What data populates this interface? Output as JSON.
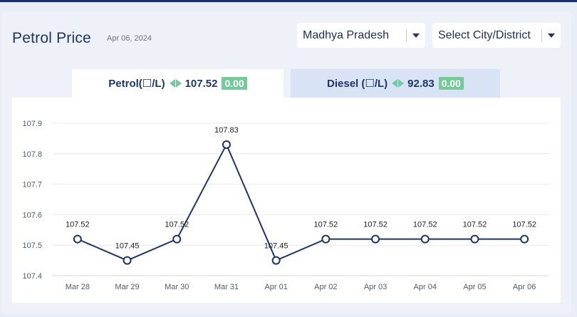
{
  "header": {
    "title": "Petrol Price",
    "date": "Apr 06, 2024"
  },
  "filters": {
    "state": "Madhya Pradesh",
    "city": "Select City/District"
  },
  "tabs": {
    "petrol": {
      "label": "Petrol(☐/L)",
      "price": "107.52",
      "change": "0.00"
    },
    "diesel": {
      "label": "Diesel (☐/L)",
      "price": "92.83",
      "change": "0.00"
    }
  },
  "colors": {
    "line": "#1f3566",
    "grid": "#e6e9ef",
    "change_badge": "#79c89b",
    "active_tab": "#ffffff",
    "inactive_tab": "#d9e3f6"
  },
  "chart_data": {
    "type": "line",
    "categories": [
      "Mar 28",
      "Mar 29",
      "Mar 30",
      "Mar 31",
      "Apr 01",
      "Apr 02",
      "Apr 03",
      "Apr 04",
      "Apr 05",
      "Apr 06"
    ],
    "series": [
      {
        "values": [
          107.52,
          107.45,
          107.52,
          107.83,
          107.45,
          107.52,
          107.52,
          107.52,
          107.52,
          107.52
        ]
      }
    ],
    "data_labels": [
      "107.52",
      "107.45",
      "107.52",
      "107.83",
      "107.45",
      "107.52",
      "107.52",
      "107.52",
      "107.52",
      "107.52"
    ],
    "y_ticks": [
      "107.4",
      "107.5",
      "107.6",
      "107.7",
      "107.8",
      "107.9"
    ],
    "ylim": [
      107.4,
      107.9
    ],
    "grid": true,
    "title": "",
    "xlabel": "",
    "ylabel": ""
  }
}
